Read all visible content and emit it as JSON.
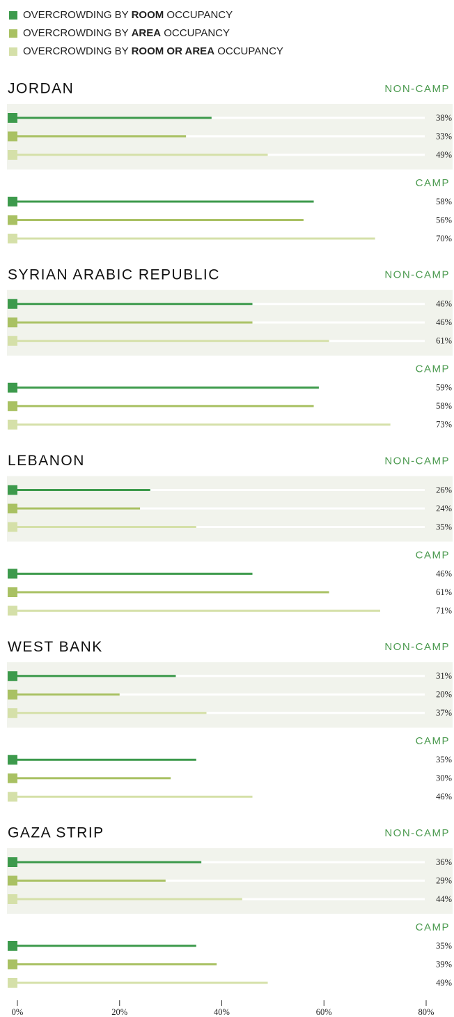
{
  "chart_data": {
    "type": "bar",
    "series": [
      {
        "name": "OVERCROWDING BY ROOM OCCUPANCY",
        "emphasis": "ROOM",
        "color": "#3d9a4c"
      },
      {
        "name": "OVERCROWDING BY AREA OCCUPANCY",
        "emphasis": "AREA",
        "color": "#a9c163"
      },
      {
        "name": "OVERCROWDING BY ROOM OR AREA OCCUPANCY",
        "emphasis": "ROOM OR AREA",
        "color": "#d5e0a9"
      }
    ],
    "panels": [
      {
        "title": "JORDAN",
        "groups": [
          {
            "name": "NON-CAMP",
            "values": [
              38,
              33,
              49
            ],
            "value_labels": [
              "38%",
              "33%",
              "49%"
            ]
          },
          {
            "name": "CAMP",
            "values": [
              58,
              56,
              70
            ],
            "value_labels": [
              "58%",
              "56%",
              "70%"
            ]
          }
        ]
      },
      {
        "title": "SYRIAN ARABIC REPUBLIC",
        "groups": [
          {
            "name": "NON-CAMP",
            "values": [
              46,
              46,
              61
            ],
            "value_labels": [
              "46%",
              "46%",
              "61%"
            ]
          },
          {
            "name": "CAMP",
            "values": [
              59,
              58,
              73
            ],
            "value_labels": [
              "59%",
              "58%",
              "73%"
            ]
          }
        ]
      },
      {
        "title": "LEBANON",
        "groups": [
          {
            "name": "NON-CAMP",
            "values": [
              26,
              24,
              35
            ],
            "value_labels": [
              "26%",
              "24%",
              "35%"
            ]
          },
          {
            "name": "CAMP",
            "values": [
              46,
              61,
              71
            ],
            "value_labels": [
              "46%",
              "61%",
              "71%"
            ]
          }
        ]
      },
      {
        "title": "WEST BANK",
        "groups": [
          {
            "name": "NON-CAMP",
            "values": [
              31,
              20,
              37
            ],
            "value_labels": [
              "31%",
              "20%",
              "37%"
            ]
          },
          {
            "name": "CAMP",
            "values": [
              35,
              30,
              46
            ],
            "value_labels": [
              "35%",
              "30%",
              "46%"
            ]
          }
        ]
      },
      {
        "title": "GAZA STRIP",
        "groups": [
          {
            "name": "NON-CAMP",
            "values": [
              36,
              29,
              44
            ],
            "value_labels": [
              "36%",
              "29%",
              "44%"
            ]
          },
          {
            "name": "CAMP",
            "values": [
              35,
              39,
              49
            ],
            "value_labels": [
              "35%",
              "39%",
              "49%"
            ]
          }
        ]
      }
    ],
    "xlim": [
      0,
      80
    ],
    "xticks": [
      {
        "value": 0,
        "label": "0%"
      },
      {
        "value": 20,
        "label": "20%"
      },
      {
        "value": 40,
        "label": "40%"
      },
      {
        "value": 60,
        "label": "60%"
      },
      {
        "value": 80,
        "label": "80%"
      }
    ]
  }
}
